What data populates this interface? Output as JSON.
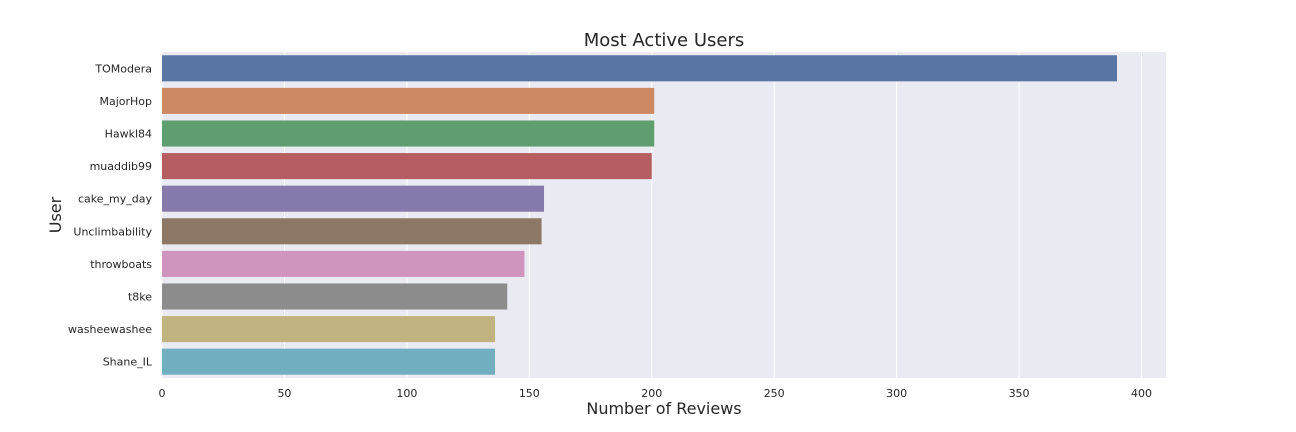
{
  "chart_data": {
    "type": "bar",
    "orientation": "horizontal",
    "title": "Most Active Users",
    "xlabel": "Number of Reviews",
    "ylabel": "User",
    "categories": [
      "TOModera",
      "MajorHop",
      "Hawkl84",
      "muaddib99",
      "cake_my_day",
      "Unclimbability",
      "throwboats",
      "t8ke",
      "washeewashee",
      "Shane_IL"
    ],
    "values": [
      390,
      201,
      201,
      200,
      156,
      155,
      148,
      141,
      136,
      136
    ],
    "colors": [
      "#5875a4",
      "#cc8963",
      "#5f9e6e",
      "#b55d60",
      "#857aab",
      "#8d7866",
      "#d095bf",
      "#8c8c8c",
      "#c1b37f",
      "#71aec0"
    ],
    "xlim": [
      0,
      410
    ],
    "xticks": [
      0,
      50,
      100,
      150,
      200,
      250,
      300,
      350,
      400
    ],
    "grid": true,
    "background": "#eaeaf2"
  }
}
